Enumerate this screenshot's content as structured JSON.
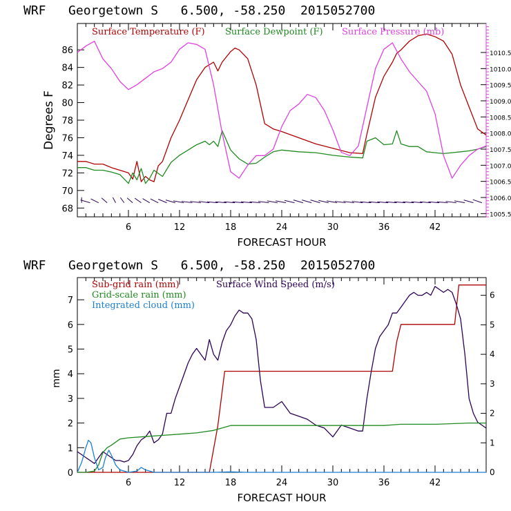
{
  "colors": {
    "temperature": "#b00000",
    "dewpoint": "#1f8a1f",
    "pressure": "#e040e0",
    "wind": "#2a0055",
    "subgrid": "#b00000",
    "gridscale": "#1f8a1f",
    "cloud": "#1a7fd4",
    "axis": "#000000"
  },
  "top_panel": {
    "title": "WRF   Georgetown S   6.500, -58.250  2015052700",
    "xlabel": "FORECAST HOUR",
    "ylabel": "Degrees F",
    "legend": [
      "Surface Temperature (F)",
      "Surface Dewpoint (F)",
      "Surface Pressure (mb)"
    ]
  },
  "bottom_panel": {
    "title": "WRF   Georgetown S   6.500, -58.250  2015052700",
    "xlabel": "FORECAST HOUR",
    "ylabel": "mm",
    "legend": [
      "Sub-grid rain (mm)",
      "Surface Wind Speed (m/s)",
      "Grid-scale rain (mm)",
      "Integrated cloud (mm)"
    ]
  },
  "chart_data": [
    {
      "type": "line",
      "title": "WRF   Georgetown S   6.500, -58.250  2015052700",
      "xlabel": "FORECAST HOUR",
      "ylabel": "Degrees F",
      "xlim": [
        0,
        48
      ],
      "ylim": [
        67,
        89
      ],
      "xticks": [
        6,
        12,
        18,
        24,
        30,
        36,
        42
      ],
      "yticks": [
        68,
        70,
        72,
        74,
        76,
        78,
        80,
        82,
        84,
        86
      ],
      "y2label": "",
      "y2lim": [
        1005.4,
        1011.4
      ],
      "y2ticks": [
        1005.5,
        1006.0,
        1006.5,
        1007.0,
        1007.5,
        1008.0,
        1008.5,
        1009.0,
        1009.5,
        1010.0,
        1010.5
      ],
      "y2ticklabels": [
        "1005.5",
        "1006.0",
        "1006.5",
        "1007.0",
        "1007.5",
        "1008.0",
        "1008.5",
        "1009.0",
        "1009.5",
        "1010.0",
        "1010.5"
      ],
      "series": [
        {
          "name": "Surface Temperature (F)",
          "axis": "left",
          "x": [
            0,
            1,
            2,
            3,
            4,
            5,
            6,
            6.5,
            7,
            7.5,
            8,
            8.5,
            9,
            9.5,
            10,
            11,
            12,
            13,
            14,
            15,
            16,
            16.5,
            17,
            18,
            18.5,
            19,
            20,
            21,
            22,
            23,
            24,
            26,
            28,
            30,
            32,
            33.5,
            34,
            35,
            36,
            37,
            37.5,
            38,
            39,
            40,
            41,
            42,
            43,
            44,
            45,
            46,
            47,
            48
          ],
          "y": [
            73.3,
            73.3,
            73.0,
            73.0,
            72.6,
            72.3,
            72.0,
            71.3,
            73.3,
            71.0,
            71.6,
            71.2,
            71.0,
            72.8,
            73.3,
            76.0,
            78.0,
            80.3,
            82.6,
            84.0,
            84.6,
            83.6,
            84.6,
            85.8,
            86.2,
            86.0,
            85.0,
            82.0,
            77.6,
            77.0,
            76.7,
            76.0,
            75.3,
            74.8,
            74.3,
            74.2,
            76.4,
            80.6,
            83.0,
            84.6,
            85.6,
            86.0,
            87.0,
            87.6,
            87.8,
            87.5,
            87.0,
            85.5,
            82.0,
            79.5,
            77.0,
            76.3
          ]
        },
        {
          "name": "Surface Dewpoint (F)",
          "axis": "left",
          "x": [
            0,
            1,
            2,
            3,
            4,
            5,
            6,
            6.5,
            7,
            7.5,
            8,
            8.5,
            9,
            10,
            11,
            12,
            13,
            14,
            15,
            15.5,
            16,
            16.5,
            17,
            18,
            19,
            20,
            21,
            22,
            23,
            24,
            26,
            28,
            30,
            32,
            33.5,
            34,
            35,
            36,
            37,
            37.5,
            38,
            39,
            40,
            41,
            42,
            43,
            44,
            45,
            46,
            47,
            48
          ],
          "y": [
            72.6,
            72.6,
            72.3,
            72.3,
            72.1,
            71.8,
            70.8,
            72.0,
            71.2,
            72.5,
            70.8,
            71.4,
            72.3,
            71.6,
            73.2,
            74.0,
            74.6,
            75.2,
            75.6,
            75.2,
            75.6,
            75.0,
            76.8,
            74.6,
            73.6,
            73.0,
            73.1,
            73.8,
            74.4,
            74.6,
            74.4,
            74.3,
            74.0,
            73.8,
            73.7,
            75.6,
            76.0,
            75.2,
            75.3,
            76.8,
            75.3,
            75.0,
            75.0,
            74.4,
            74.3,
            74.2,
            74.3,
            74.4,
            74.5,
            74.7,
            75.0
          ]
        },
        {
          "name": "Surface Pressure (mb)",
          "axis": "right",
          "x": [
            0,
            1,
            2,
            3,
            4,
            5,
            6,
            7,
            8,
            9,
            10,
            11,
            12,
            13,
            14,
            15,
            16,
            17,
            18,
            19,
            20,
            21,
            22,
            23,
            24,
            25,
            26,
            27,
            28,
            29,
            30,
            31,
            32,
            33,
            34,
            35,
            36,
            37,
            38,
            39,
            40,
            41,
            42,
            43,
            44,
            45,
            46,
            47,
            48
          ],
          "y": [
            1010.5,
            1010.7,
            1010.85,
            1010.3,
            1010.0,
            1009.6,
            1009.35,
            1009.5,
            1009.7,
            1009.9,
            1010.0,
            1010.2,
            1010.6,
            1010.8,
            1010.75,
            1010.6,
            1009.5,
            1008.0,
            1006.8,
            1006.6,
            1007.0,
            1007.3,
            1007.3,
            1007.5,
            1008.2,
            1008.7,
            1008.9,
            1009.2,
            1009.1,
            1008.7,
            1008.1,
            1007.4,
            1007.3,
            1007.6,
            1008.8,
            1010.0,
            1010.6,
            1010.8,
            1010.3,
            1009.9,
            1009.6,
            1009.3,
            1008.6,
            1007.3,
            1006.6,
            1007.0,
            1007.3,
            1007.5,
            1007.6
          ]
        }
      ],
      "wind_barbs": {
        "x": [
          0.5,
          1.5,
          2.5,
          3.5,
          4.5,
          5.5,
          6.5,
          7.5,
          8.5,
          9.5,
          10.5,
          11.5,
          12.5,
          13.5,
          14.5,
          15.5,
          16.5,
          17.5,
          18.5,
          19.5,
          20.5,
          21.5,
          22.5,
          23.5,
          24.5,
          25.5,
          26.5,
          27.5,
          28.5,
          29.5,
          30.5,
          31.5,
          32.5,
          33.5,
          34.5,
          35.5,
          36.5,
          37.5,
          38.5,
          39.5,
          40.5,
          41.5,
          42.5,
          43.5,
          44.5,
          45.5,
          46.5,
          47.5
        ],
        "direction_deg": [
          0,
          300,
          315,
          330,
          345,
          340,
          330,
          325,
          320,
          315,
          310,
          300,
          290,
          285,
          285,
          285,
          280,
          280,
          280,
          280,
          280,
          280,
          285,
          290,
          290,
          295,
          300,
          300,
          300,
          295,
          290,
          285,
          285,
          285,
          280,
          280,
          280,
          280,
          280,
          280,
          280,
          280,
          280,
          280,
          285,
          290,
          300,
          305
        ]
      }
    },
    {
      "type": "line",
      "title": "WRF   Georgetown S   6.500, -58.250  2015052700",
      "xlabel": "FORECAST HOUR",
      "ylabel": "mm",
      "xlim": [
        0,
        48
      ],
      "ylim": [
        0,
        7.9
      ],
      "xticks": [
        6,
        12,
        18,
        24,
        30,
        36,
        42
      ],
      "yticks": [
        0,
        1,
        2,
        3,
        4,
        5,
        6,
        7
      ],
      "y2label": "",
      "y2lim": [
        0,
        6.6
      ],
      "y2ticks": [
        0,
        1,
        2,
        3,
        4,
        5,
        6
      ],
      "series": [
        {
          "name": "Sub-grid rain (mm)",
          "axis": "left",
          "x": [
            0,
            15.5,
            16.5,
            17.3,
            37,
            37.5,
            38,
            44.3,
            44.8,
            48
          ],
          "y": [
            0,
            0,
            1.9,
            4.1,
            4.1,
            5.3,
            6.0,
            6.0,
            7.6,
            7.6
          ]
        },
        {
          "name": "Surface Wind Speed (m/s)",
          "axis": "right",
          "x": [
            0,
            0.5,
            1,
            1.5,
            2,
            2.5,
            3,
            3.5,
            4,
            4.5,
            5,
            5.5,
            6,
            6.5,
            7,
            7.5,
            8,
            8.5,
            9,
            9.5,
            10,
            10.5,
            11,
            11.5,
            12,
            12.5,
            13,
            13.5,
            14,
            14.5,
            15,
            15.5,
            16,
            16.5,
            17,
            17.5,
            18,
            18.5,
            19,
            19.5,
            20,
            20.5,
            21,
            21.5,
            22,
            23,
            24,
            25,
            26,
            27,
            28,
            29,
            30,
            31,
            32,
            33,
            33.5,
            34,
            34.5,
            35,
            35.5,
            36,
            36.5,
            37,
            37.5,
            38,
            38.5,
            39,
            39.5,
            40,
            40.5,
            41,
            41.5,
            42,
            42.5,
            43,
            43.5,
            44,
            44.5,
            45,
            45.5,
            46,
            46.5,
            47,
            47.5,
            48
          ],
          "y": [
            0.7,
            0.6,
            0.5,
            0.4,
            0.3,
            0.5,
            0.7,
            0.6,
            0.5,
            0.4,
            0.4,
            0.35,
            0.4,
            0.6,
            0.9,
            1.1,
            1.2,
            1.4,
            1.0,
            1.1,
            1.3,
            2.0,
            2.0,
            2.5,
            2.9,
            3.3,
            3.7,
            4.0,
            4.2,
            4.0,
            3.8,
            4.5,
            4.0,
            3.8,
            4.4,
            4.8,
            5.0,
            5.3,
            5.5,
            5.4,
            5.4,
            5.2,
            4.5,
            3.1,
            2.2,
            2.2,
            2.4,
            2.0,
            1.9,
            1.8,
            1.6,
            1.5,
            1.2,
            1.6,
            1.5,
            1.4,
            1.4,
            2.5,
            3.4,
            4.2,
            4.6,
            4.8,
            5.0,
            5.4,
            5.4,
            5.6,
            5.8,
            6.0,
            6.1,
            6.0,
            6.0,
            6.1,
            6.0,
            6.3,
            6.2,
            6.1,
            6.2,
            6.1,
            5.7,
            5.2,
            4.0,
            2.5,
            2.0,
            1.7,
            1.6,
            1.5
          ]
        },
        {
          "name": "Grid-scale rain (mm)",
          "axis": "left",
          "x": [
            0,
            1,
            2,
            2.5,
            3,
            3.5,
            4,
            5,
            6,
            8,
            10,
            12,
            14,
            16,
            18,
            20,
            24,
            30,
            36,
            38,
            42,
            46,
            48
          ],
          "y": [
            0,
            0,
            0.05,
            0.3,
            0.8,
            1.0,
            1.1,
            1.35,
            1.4,
            1.45,
            1.5,
            1.55,
            1.6,
            1.7,
            1.9,
            1.9,
            1.9,
            1.9,
            1.9,
            1.95,
            1.95,
            2.0,
            2.0
          ]
        },
        {
          "name": "Integrated cloud (mm)",
          "axis": "left",
          "x": [
            0,
            0.5,
            1,
            1.3,
            1.6,
            2,
            2.5,
            3,
            3.3,
            3.7,
            4,
            4.5,
            5,
            6,
            7,
            7.5,
            8,
            9,
            10,
            12,
            14,
            16,
            18,
            20,
            24,
            30,
            36,
            42,
            48
          ],
          "y": [
            0,
            0.4,
            1.0,
            1.3,
            1.2,
            0.6,
            0.1,
            0.2,
            0.6,
            0.9,
            0.7,
            0.3,
            0.1,
            0,
            0.05,
            0.2,
            0.1,
            0,
            0,
            0,
            0,
            0,
            0.02,
            0,
            0,
            0,
            0,
            0,
            0
          ]
        }
      ]
    }
  ]
}
